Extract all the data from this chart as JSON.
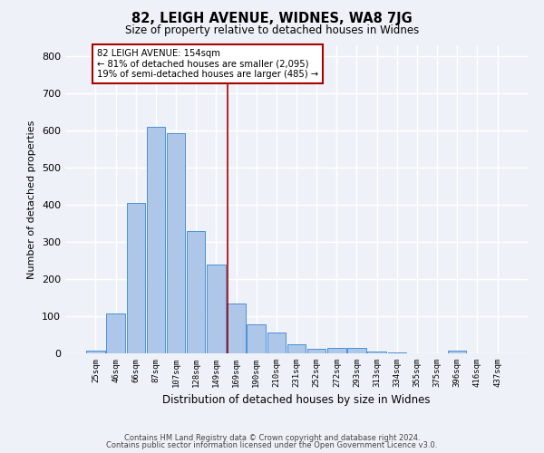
{
  "title1": "82, LEIGH AVENUE, WIDNES, WA8 7JG",
  "title2": "Size of property relative to detached houses in Widnes",
  "xlabel": "Distribution of detached houses by size in Widnes",
  "ylabel": "Number of detached properties",
  "footer1": "Contains HM Land Registry data © Crown copyright and database right 2024.",
  "footer2": "Contains public sector information licensed under the Open Government Licence v3.0.",
  "annotation_title": "82 LEIGH AVENUE: 154sqm",
  "annotation_line1": "← 81% of detached houses are smaller (2,095)",
  "annotation_line2": "19% of semi-detached houses are larger (485) →",
  "bar_labels": [
    "25sqm",
    "46sqm",
    "66sqm",
    "87sqm",
    "107sqm",
    "128sqm",
    "149sqm",
    "169sqm",
    "190sqm",
    "210sqm",
    "231sqm",
    "252sqm",
    "272sqm",
    "293sqm",
    "313sqm",
    "334sqm",
    "355sqm",
    "375sqm",
    "396sqm",
    "416sqm",
    "437sqm"
  ],
  "bar_values": [
    8,
    108,
    405,
    610,
    593,
    330,
    240,
    135,
    78,
    55,
    25,
    13,
    15,
    15,
    5,
    3,
    0,
    0,
    8,
    0,
    0
  ],
  "bar_color": "#aec6e8",
  "bar_edge_color": "#4a90d9",
  "vline_x": 6.57,
  "vline_color": "#aa0000",
  "annotation_box_color": "#aa0000",
  "background_color": "#eef2f8",
  "grid_color": "#ffffff",
  "ylim": [
    0,
    830
  ],
  "yticks": [
    0,
    100,
    200,
    300,
    400,
    500,
    600,
    700,
    800
  ]
}
